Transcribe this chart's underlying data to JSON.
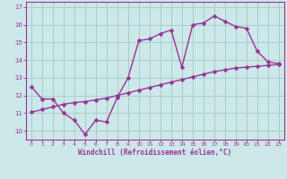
{
  "line1_x": [
    0,
    1,
    2,
    3,
    4,
    5,
    6,
    7,
    8,
    9,
    10,
    11,
    12,
    13,
    14,
    15,
    16,
    17,
    18,
    19,
    20,
    21,
    22,
    23
  ],
  "line1_y": [
    12.5,
    11.8,
    11.8,
    11.0,
    10.6,
    9.8,
    10.6,
    10.5,
    11.9,
    13.0,
    15.1,
    15.2,
    15.5,
    15.7,
    13.6,
    16.0,
    16.1,
    16.5,
    16.2,
    15.9,
    15.8,
    14.5,
    13.9,
    13.8
  ],
  "line2_x": [
    0,
    1,
    2,
    3,
    4,
    5,
    6,
    7,
    8,
    9,
    10,
    11,
    12,
    13,
    14,
    15,
    16,
    17,
    18,
    19,
    20,
    21,
    22,
    23
  ],
  "line2_y": [
    11.05,
    11.2,
    11.35,
    11.5,
    11.6,
    11.65,
    11.75,
    11.85,
    12.0,
    12.15,
    12.3,
    12.45,
    12.6,
    12.75,
    12.9,
    13.05,
    13.2,
    13.35,
    13.45,
    13.55,
    13.6,
    13.65,
    13.7,
    13.75
  ],
  "color": "#993399",
  "background": "#cce8e8",
  "grid_color": "#aacccc",
  "xlabel": "Windchill (Refroidissement éolien,°C)",
  "xlim": [
    -0.5,
    23.5
  ],
  "ylim": [
    9.5,
    17.3
  ],
  "yticks": [
    10,
    11,
    12,
    13,
    14,
    15,
    16,
    17
  ],
  "xticks": [
    0,
    1,
    2,
    3,
    4,
    5,
    6,
    7,
    8,
    9,
    10,
    11,
    12,
    13,
    14,
    15,
    16,
    17,
    18,
    19,
    20,
    21,
    22,
    23
  ],
  "marker": "D",
  "markersize": 2.5,
  "linewidth": 1.0
}
